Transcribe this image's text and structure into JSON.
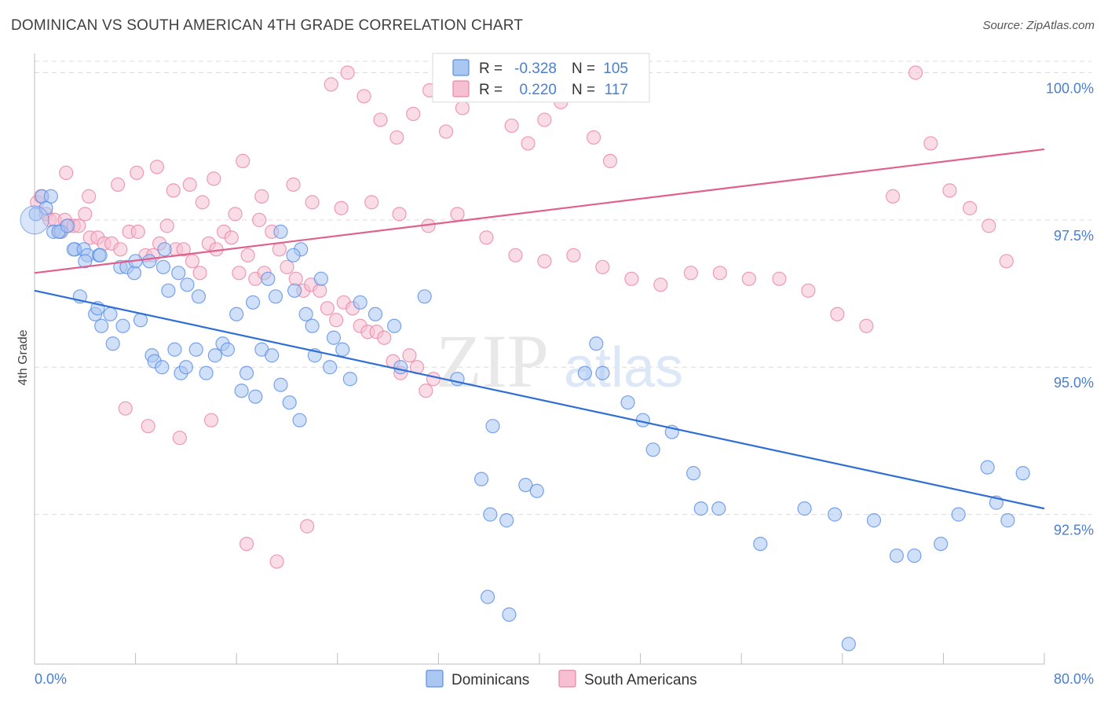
{
  "title": "DOMINICAN VS SOUTH AMERICAN 4TH GRADE CORRELATION CHART",
  "source": "Source: ZipAtlas.com",
  "colors": {
    "blue": "#5b8ee6",
    "blue_fill": "#aac7f2",
    "blue_line": "#2f6fd4",
    "pink": "#e886a5",
    "pink_fill": "#f6c0d2",
    "pink_line": "#e0608e",
    "tick_text": "#4a7fd0",
    "grid": "#dcdcdc"
  },
  "chart_data": {
    "type": "scatter",
    "title": "DOMINICAN VS SOUTH AMERICAN 4TH GRADE CORRELATION CHART",
    "xlabel": "",
    "ylabel": "4th Grade",
    "xlim": [
      0,
      80
    ],
    "ylim": [
      90.2,
      100.3
    ],
    "x_tick_labels": [
      "0.0%",
      "80.0%"
    ],
    "y_ticks": [
      92.5,
      95.0,
      97.5,
      100.0
    ],
    "y_tick_labels": [
      "92.5%",
      "95.0%",
      "97.5%",
      "100.0%"
    ],
    "grid": true,
    "legend": [
      {
        "name": "Dominicans",
        "r_label": "R =",
        "r_value": "-0.328",
        "n_label": "N =",
        "n_value": "105"
      },
      {
        "name": "South Americans",
        "r_label": "R =",
        "r_value": "0.220",
        "n_label": "N =",
        "n_value": "117"
      }
    ],
    "series": [
      {
        "name": "Dominicans",
        "trend": [
          [
            0,
            96.3
          ],
          [
            80,
            92.6
          ]
        ],
        "points": [
          [
            0.1,
            97.6
          ],
          [
            0.6,
            97.9
          ],
          [
            1.3,
            97.9
          ],
          [
            0.9,
            97.7
          ],
          [
            1.5,
            97.3
          ],
          [
            2.1,
            97.3
          ],
          [
            1.9,
            97.3
          ],
          [
            2.6,
            97.4
          ],
          [
            3.2,
            97.0
          ],
          [
            3.1,
            97.0
          ],
          [
            3.9,
            97.0
          ],
          [
            4.2,
            96.9
          ],
          [
            4.0,
            96.8
          ],
          [
            5.1,
            96.9
          ],
          [
            5.2,
            96.9
          ],
          [
            6.8,
            96.7
          ],
          [
            7.3,
            96.7
          ],
          [
            7.9,
            96.6
          ],
          [
            8.0,
            96.8
          ],
          [
            9.1,
            96.8
          ],
          [
            10.3,
            97.0
          ],
          [
            10.2,
            96.7
          ],
          [
            10.6,
            96.3
          ],
          [
            11.4,
            96.6
          ],
          [
            12.1,
            96.4
          ],
          [
            13.0,
            96.2
          ],
          [
            3.6,
            96.2
          ],
          [
            4.8,
            95.9
          ],
          [
            5.0,
            96.0
          ],
          [
            6.0,
            95.9
          ],
          [
            5.3,
            95.7
          ],
          [
            7.0,
            95.7
          ],
          [
            8.4,
            95.8
          ],
          [
            6.2,
            95.4
          ],
          [
            9.3,
            95.2
          ],
          [
            9.5,
            95.1
          ],
          [
            10.1,
            95.0
          ],
          [
            11.1,
            95.3
          ],
          [
            11.6,
            94.9
          ],
          [
            12.0,
            95.0
          ],
          [
            12.8,
            95.3
          ],
          [
            13.6,
            94.9
          ],
          [
            14.3,
            95.2
          ],
          [
            14.9,
            95.4
          ],
          [
            15.3,
            95.3
          ],
          [
            16.4,
            94.6
          ],
          [
            16.8,
            94.9
          ],
          [
            17.5,
            94.5
          ],
          [
            18.0,
            95.3
          ],
          [
            18.8,
            95.2
          ],
          [
            19.5,
            94.7
          ],
          [
            20.2,
            94.4
          ],
          [
            21.0,
            94.1
          ],
          [
            22.2,
            95.2
          ],
          [
            23.4,
            95.0
          ],
          [
            24.4,
            95.3
          ],
          [
            25.0,
            94.8
          ],
          [
            16.0,
            95.9
          ],
          [
            17.3,
            96.1
          ],
          [
            18.5,
            96.5
          ],
          [
            19.1,
            96.2
          ],
          [
            20.6,
            96.3
          ],
          [
            21.5,
            95.9
          ],
          [
            22.0,
            95.7
          ],
          [
            23.7,
            95.5
          ],
          [
            25.8,
            96.1
          ],
          [
            27.0,
            95.9
          ],
          [
            28.5,
            95.7
          ],
          [
            29.0,
            95.0
          ],
          [
            30.9,
            96.2
          ],
          [
            33.5,
            94.8
          ],
          [
            36.3,
            94.0
          ],
          [
            35.4,
            93.1
          ],
          [
            36.1,
            92.5
          ],
          [
            37.4,
            92.4
          ],
          [
            35.9,
            91.1
          ],
          [
            37.6,
            90.8
          ],
          [
            38.9,
            93.0
          ],
          [
            39.8,
            92.9
          ],
          [
            43.6,
            94.9
          ],
          [
            44.5,
            95.4
          ],
          [
            45.0,
            94.9
          ],
          [
            47.0,
            94.4
          ],
          [
            48.2,
            94.1
          ],
          [
            50.5,
            93.9
          ],
          [
            49.0,
            93.6
          ],
          [
            52.2,
            93.2
          ],
          [
            52.8,
            92.6
          ],
          [
            54.2,
            92.6
          ],
          [
            57.5,
            92.0
          ],
          [
            61.0,
            92.6
          ],
          [
            63.4,
            92.5
          ],
          [
            64.5,
            90.3
          ],
          [
            66.5,
            92.4
          ],
          [
            68.3,
            91.8
          ],
          [
            69.7,
            91.8
          ],
          [
            71.8,
            92.0
          ],
          [
            73.2,
            92.5
          ],
          [
            75.5,
            93.3
          ],
          [
            76.2,
            92.7
          ],
          [
            77.1,
            92.4
          ],
          [
            78.3,
            93.2
          ],
          [
            19.5,
            97.3
          ],
          [
            21.1,
            97.0
          ],
          [
            20.5,
            96.9
          ],
          [
            22.7,
            96.5
          ]
        ]
      },
      {
        "name": "South Americans",
        "trend": [
          [
            0,
            96.6
          ],
          [
            80,
            98.7
          ]
        ],
        "points": [
          [
            0.2,
            97.8
          ],
          [
            0.5,
            97.9
          ],
          [
            0.9,
            97.6
          ],
          [
            1.2,
            97.5
          ],
          [
            1.6,
            97.5
          ],
          [
            2.0,
            97.3
          ],
          [
            2.4,
            97.5
          ],
          [
            2.7,
            97.4
          ],
          [
            3.1,
            97.4
          ],
          [
            3.5,
            97.4
          ],
          [
            4.0,
            97.6
          ],
          [
            4.4,
            97.2
          ],
          [
            5.0,
            97.2
          ],
          [
            5.5,
            97.1
          ],
          [
            6.1,
            97.1
          ],
          [
            6.8,
            97.0
          ],
          [
            7.5,
            97.3
          ],
          [
            8.2,
            97.3
          ],
          [
            8.8,
            96.9
          ],
          [
            9.4,
            96.9
          ],
          [
            9.9,
            97.1
          ],
          [
            10.5,
            97.4
          ],
          [
            11.2,
            97.0
          ],
          [
            11.8,
            97.0
          ],
          [
            12.5,
            96.8
          ],
          [
            13.1,
            96.6
          ],
          [
            13.8,
            97.1
          ],
          [
            14.4,
            97.0
          ],
          [
            15.0,
            97.3
          ],
          [
            15.6,
            97.2
          ],
          [
            16.2,
            96.6
          ],
          [
            16.9,
            96.9
          ],
          [
            17.5,
            96.5
          ],
          [
            18.2,
            96.6
          ],
          [
            18.8,
            97.3
          ],
          [
            19.4,
            97.0
          ],
          [
            20.0,
            96.7
          ],
          [
            20.7,
            96.5
          ],
          [
            21.3,
            96.3
          ],
          [
            21.9,
            96.4
          ],
          [
            22.6,
            96.3
          ],
          [
            23.2,
            96.0
          ],
          [
            23.9,
            95.8
          ],
          [
            24.5,
            96.1
          ],
          [
            25.2,
            96.0
          ],
          [
            25.8,
            95.7
          ],
          [
            26.4,
            95.6
          ],
          [
            27.1,
            95.6
          ],
          [
            27.7,
            95.5
          ],
          [
            28.4,
            95.1
          ],
          [
            29.0,
            94.9
          ],
          [
            29.7,
            95.2
          ],
          [
            30.3,
            95.0
          ],
          [
            31.0,
            94.6
          ],
          [
            31.6,
            94.8
          ],
          [
            12.3,
            98.1
          ],
          [
            14.2,
            98.2
          ],
          [
            16.5,
            98.5
          ],
          [
            18.0,
            97.9
          ],
          [
            20.5,
            98.1
          ],
          [
            22.0,
            97.8
          ],
          [
            24.3,
            97.7
          ],
          [
            26.7,
            97.8
          ],
          [
            28.9,
            97.6
          ],
          [
            31.2,
            97.4
          ],
          [
            33.5,
            97.6
          ],
          [
            35.8,
            97.2
          ],
          [
            38.1,
            96.9
          ],
          [
            40.4,
            96.8
          ],
          [
            42.7,
            96.9
          ],
          [
            45.0,
            96.7
          ],
          [
            47.3,
            96.5
          ],
          [
            49.6,
            96.4
          ],
          [
            52.0,
            96.6
          ],
          [
            54.3,
            96.6
          ],
          [
            56.6,
            96.5
          ],
          [
            59.0,
            96.5
          ],
          [
            61.3,
            96.3
          ],
          [
            63.6,
            95.9
          ],
          [
            65.9,
            95.7
          ],
          [
            2.5,
            98.3
          ],
          [
            4.3,
            97.9
          ],
          [
            6.6,
            98.1
          ],
          [
            8.1,
            98.3
          ],
          [
            9.7,
            98.4
          ],
          [
            11.0,
            98.0
          ],
          [
            13.3,
            97.8
          ],
          [
            15.9,
            97.6
          ],
          [
            17.8,
            97.5
          ],
          [
            23.5,
            99.8
          ],
          [
            24.8,
            100.0
          ],
          [
            26.1,
            99.6
          ],
          [
            27.4,
            99.2
          ],
          [
            28.7,
            98.9
          ],
          [
            30.0,
            99.3
          ],
          [
            31.3,
            99.7
          ],
          [
            32.6,
            99.0
          ],
          [
            33.9,
            99.4
          ],
          [
            35.2,
            99.8
          ],
          [
            36.5,
            99.9
          ],
          [
            37.8,
            99.1
          ],
          [
            39.1,
            98.8
          ],
          [
            40.4,
            99.2
          ],
          [
            41.7,
            99.5
          ],
          [
            43.0,
            99.7
          ],
          [
            44.3,
            98.9
          ],
          [
            45.6,
            98.5
          ],
          [
            68.0,
            97.9
          ],
          [
            69.8,
            100.0
          ],
          [
            71.0,
            98.8
          ],
          [
            72.5,
            98.0
          ],
          [
            74.1,
            97.7
          ],
          [
            75.6,
            97.4
          ],
          [
            77.0,
            96.8
          ],
          [
            7.2,
            94.3
          ],
          [
            9.0,
            94.0
          ],
          [
            11.5,
            93.8
          ],
          [
            14.0,
            94.1
          ],
          [
            16.8,
            92.0
          ],
          [
            19.2,
            91.7
          ],
          [
            21.6,
            92.3
          ]
        ]
      }
    ]
  }
}
